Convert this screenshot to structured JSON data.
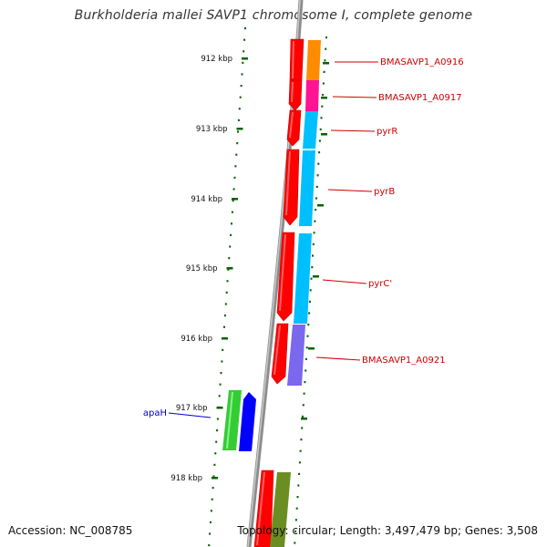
{
  "title": "Burkholderia mallei SAVP1 chromosome I, complete genome",
  "footer": {
    "accession": "Accession: NC_008785",
    "summary": "Topology: circular; Length: 3,497,479 bp; Genes: 3,508"
  },
  "colors": {
    "backbone": "#8c8c8c",
    "cds": "#ff0000",
    "tick": "#006400",
    "ruler_label": "#111111",
    "gene_label_default": "#cc0000",
    "gene_label_apaH": "#0000cc",
    "orange_feature": "#ff8c00",
    "magenta_feature": "#ff1493",
    "cyan_feature": "#00bfff",
    "purple_feature": "#7b68ee",
    "green_feature": "#32cd32",
    "blue_feature": "#0000ff",
    "olive_feature": "#6b8e23"
  },
  "ruler": [
    {
      "label": "912 kbp"
    },
    {
      "label": "913 kbp"
    },
    {
      "label": "914 kbp"
    },
    {
      "label": "915 kbp"
    },
    {
      "label": "916 kbp"
    },
    {
      "label": "917 kbp"
    },
    {
      "label": "918 kbp"
    }
  ],
  "gene_labels": [
    {
      "text": "BMASAVP1_A0916",
      "color_key": "gene_label_default"
    },
    {
      "text": "BMASAVP1_A0917",
      "color_key": "gene_label_default"
    },
    {
      "text": "pyrR",
      "color_key": "gene_label_default"
    },
    {
      "text": "pyrB",
      "color_key": "gene_label_default"
    },
    {
      "text": "pyrC'",
      "color_key": "gene_label_default"
    },
    {
      "text": "BMASAVP1_A0921",
      "color_key": "gene_label_default"
    },
    {
      "text": "apaH",
      "color_key": "gene_label_apaH"
    }
  ]
}
